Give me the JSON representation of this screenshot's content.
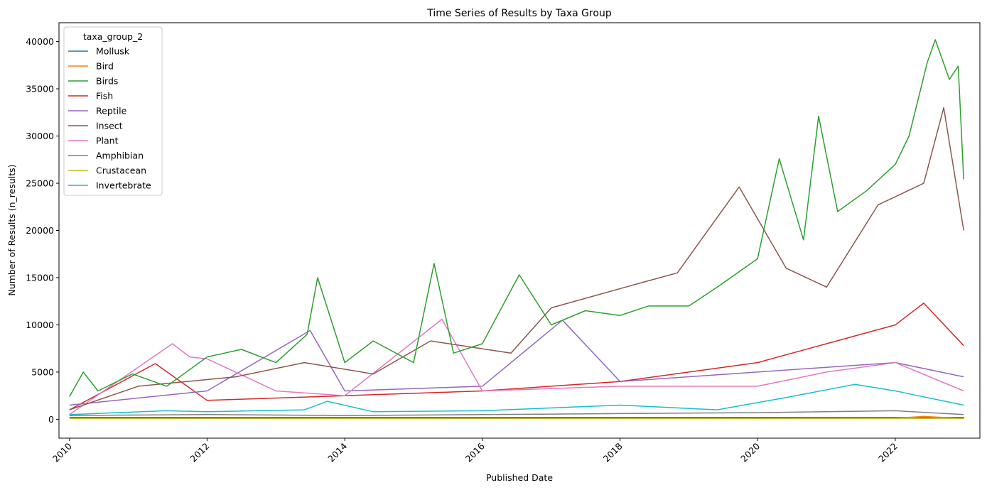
{
  "chart_data": {
    "type": "line",
    "title": "Time Series of Results by Taxa Group",
    "xlabel": "Published Date",
    "ylabel": "Number of Results (n_results)",
    "x_range": [
      "2009-11-06",
      "2023-03-26"
    ],
    "ylim": [
      -2000,
      42000
    ],
    "x_ticks": [
      "2010",
      "2012",
      "2014",
      "2016",
      "2018",
      "2020",
      "2022"
    ],
    "y_ticks": [
      0,
      5000,
      10000,
      15000,
      20000,
      25000,
      30000,
      35000,
      40000
    ],
    "x_tick_rotation": 45,
    "grid": false,
    "legend": {
      "title": "taxa_group_2",
      "placement": "top-left"
    },
    "series": [
      {
        "name": "Mollusk",
        "color": "#1f77b4",
        "x": [
          "2010-01-01",
          "2023-01-01"
        ],
        "y": [
          200,
          200
        ]
      },
      {
        "name": "Bird",
        "color": "#ff7f0e",
        "x": [
          "2010-01-01",
          "2012-01-01",
          "2014-01-01",
          "2016-01-01",
          "2018-01-01",
          "2020-01-01",
          "2022-01-01",
          "2022-06-01",
          "2022-12-30"
        ],
        "y": [
          100,
          80,
          100,
          80,
          100,
          90,
          120,
          300,
          80
        ]
      },
      {
        "name": "Birds",
        "color": "#2ca02c",
        "x": [
          "2010-01-01",
          "2010-03-15",
          "2010-06-01",
          "2010-12-01",
          "2011-06-01",
          "2012-01-01",
          "2012-07-01",
          "2013-01-01",
          "2013-06-15",
          "2013-08-10",
          "2014-01-01",
          "2014-06-01",
          "2015-01-01",
          "2015-04-20",
          "2015-08-01",
          "2016-01-01",
          "2016-07-15",
          "2017-01-01",
          "2017-07-01",
          "2018-01-01",
          "2018-06-01",
          "2019-01-01",
          "2019-06-01",
          "2020-01-01",
          "2020-04-25",
          "2020-09-01",
          "2020-11-20",
          "2021-03-01",
          "2021-08-01",
          "2022-01-01",
          "2022-03-15",
          "2022-06-20",
          "2022-08-01",
          "2022-10-15",
          "2022-12-01",
          "2022-12-30"
        ],
        "y": [
          2400,
          5000,
          3000,
          4800,
          3500,
          6600,
          7400,
          6000,
          9000,
          15000,
          6000,
          8300,
          6000,
          16500,
          7000,
          8000,
          15300,
          10000,
          11500,
          11000,
          12000,
          12000,
          14000,
          17000,
          27600,
          19000,
          32100,
          22000,
          24200,
          27000,
          30000,
          37800,
          40200,
          36000,
          37400,
          25400
        ]
      },
      {
        "name": "Fish",
        "color": "#d62728",
        "x": [
          "2010-01-01",
          "2011-04-01",
          "2012-01-01",
          "2014-01-01",
          "2016-01-01",
          "2018-01-01",
          "2019-01-01",
          "2020-01-01",
          "2021-01-01",
          "2022-01-01",
          "2022-06-01",
          "2022-12-30"
        ],
        "y": [
          1000,
          5900,
          2000,
          2500,
          3000,
          4000,
          5000,
          6000,
          8000,
          10000,
          12300,
          7800
        ]
      },
      {
        "name": "Reptile",
        "color": "#9467bd",
        "x": [
          "2010-01-01",
          "2012-01-01",
          "2013-07-01",
          "2014-01-01",
          "2016-01-01",
          "2017-03-01",
          "2018-01-01",
          "2020-01-01",
          "2022-01-01",
          "2022-12-30"
        ],
        "y": [
          1500,
          3000,
          9400,
          3000,
          3500,
          10500,
          4000,
          5000,
          6000,
          4500
        ]
      },
      {
        "name": "Insect",
        "color": "#8c564b",
        "x": [
          "2010-01-01",
          "2011-01-01",
          "2012-06-01",
          "2013-06-01",
          "2014-06-01",
          "2015-04-01",
          "2016-06-01",
          "2017-01-01",
          "2018-05-01",
          "2018-11-01",
          "2019-09-25",
          "2020-06-01",
          "2021-01-01",
          "2021-10-01",
          "2022-06-01",
          "2022-09-15",
          "2022-12-30"
        ],
        "y": [
          1000,
          3500,
          4500,
          6000,
          4800,
          8300,
          7000,
          11800,
          14500,
          15500,
          24600,
          16000,
          14000,
          22700,
          25000,
          33000,
          20000
        ]
      },
      {
        "name": "Plant",
        "color": "#e377c2",
        "x": [
          "2010-01-01",
          "2011-07-01",
          "2011-10-01",
          "2012-01-01",
          "2013-01-01",
          "2014-01-01",
          "2015-06-01",
          "2016-01-01",
          "2018-01-01",
          "2020-01-01",
          "2021-01-01",
          "2022-01-01",
          "2022-12-30"
        ],
        "y": [
          500,
          8000,
          6600,
          6400,
          3000,
          2500,
          10600,
          3000,
          3500,
          3500,
          5000,
          6000,
          3000
        ]
      },
      {
        "name": "Amphibian",
        "color": "#7f7f7f",
        "x": [
          "2010-01-01",
          "2012-01-01",
          "2014-01-01",
          "2016-01-01",
          "2018-01-01",
          "2020-01-01",
          "2022-01-01",
          "2022-12-30"
        ],
        "y": [
          400,
          500,
          400,
          500,
          600,
          700,
          900,
          500
        ]
      },
      {
        "name": "Crustacean",
        "color": "#bcbd22",
        "x": [
          "2010-01-01",
          "2023-01-01"
        ],
        "y": [
          100,
          100
        ]
      },
      {
        "name": "Invertebrate",
        "color": "#17becf",
        "x": [
          "2010-01-01",
          "2011-06-01",
          "2012-01-01",
          "2013-06-01",
          "2013-10-01",
          "2014-06-01",
          "2016-01-01",
          "2018-01-01",
          "2019-06-01",
          "2020-06-01",
          "2021-06-01",
          "2022-01-01",
          "2022-12-30"
        ],
        "y": [
          500,
          900,
          800,
          1000,
          1900,
          800,
          900,
          1500,
          1000,
          2300,
          3700,
          3000,
          1500
        ]
      }
    ]
  }
}
